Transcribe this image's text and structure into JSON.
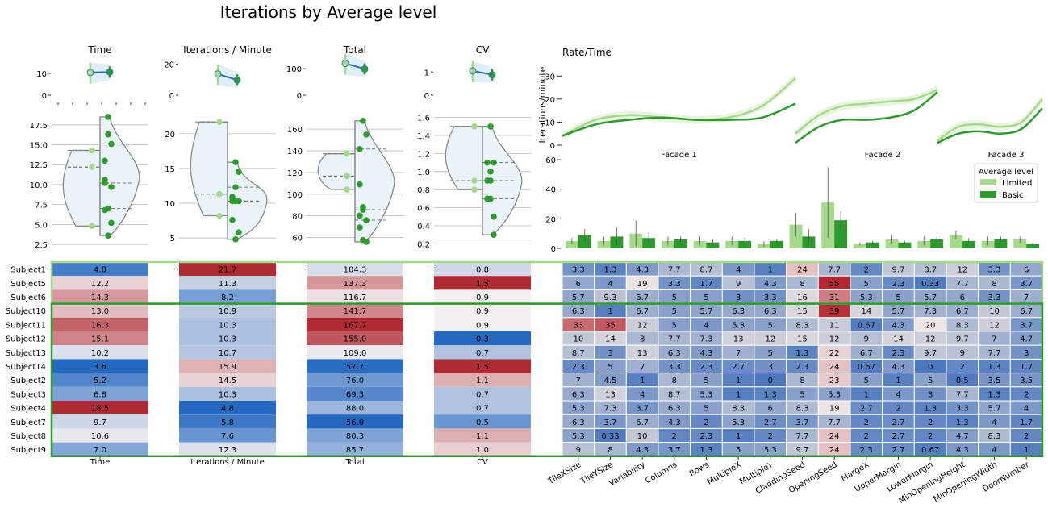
{
  "title": "Iterations by Average level",
  "colors": {
    "limited": "#a6d98d",
    "basic": "#2e9a2e",
    "line": "#1f6fb4",
    "violin_fill": "#eaf3f8",
    "violin_edge": "#8a8a8a",
    "heat_low": "#2468c0",
    "heat_mid": "#f4f0f0",
    "heat_high": "#b02a33"
  },
  "chart_data": [
    {
      "type": "scatter",
      "id": "top_metrics",
      "panels": [
        {
          "title": "Time",
          "yticks": [
            "0",
            "10"
          ],
          "limited": 10.4,
          "basic": 10.6,
          "ylim": [
            0,
            17
          ]
        },
        {
          "title": "Iterations / Minute",
          "yticks": [
            "0",
            "20"
          ],
          "limited": 13.7,
          "basic": 9.8,
          "ylim": [
            0,
            24
          ]
        },
        {
          "title": "Total",
          "yticks": [
            "0",
            "100"
          ],
          "limited": 120,
          "basic": 99,
          "ylim": [
            0,
            140
          ]
        },
        {
          "title": "CV",
          "yticks": [
            "0",
            "1"
          ],
          "limited": 1.05,
          "basic": 0.88,
          "ylim": [
            0,
            1.6
          ]
        }
      ]
    },
    {
      "type": "scatter",
      "id": "violins",
      "panels": [
        {
          "ylim": [
            2,
            19
          ],
          "yticks": [
            "2.5",
            "5.0",
            "7.5",
            "10.0",
            "12.5",
            "15.0",
            "17.5"
          ],
          "tickvals": [
            2.5,
            5,
            7.5,
            10,
            12.5,
            15,
            17.5
          ],
          "limited": [
            4.8,
            12.2,
            14.3
          ],
          "basic": [
            13.0,
            16.3,
            15.1,
            10.2,
            3.6,
            5.2,
            6.8,
            18.5,
            9.7,
            10.6,
            7.0
          ]
        },
        {
          "ylim": [
            3.5,
            23
          ],
          "yticks": [
            "5",
            "10",
            "15",
            "20"
          ],
          "tickvals": [
            5,
            10,
            15,
            20
          ],
          "limited": [
            21.7,
            11.3,
            8.2
          ],
          "basic": [
            10.9,
            10.3,
            10.3,
            10.7,
            15.9,
            14.5,
            10.3,
            4.8,
            5.8,
            7.6,
            12.3
          ]
        },
        {
          "ylim": [
            50,
            175
          ],
          "yticks": [
            "60",
            "80",
            "100",
            "120",
            "140",
            "160"
          ],
          "tickvals": [
            60,
            80,
            100,
            120,
            140,
            160
          ],
          "limited": [
            104.3,
            137.3,
            116.7
          ],
          "basic": [
            141.7,
            167.7,
            155.0,
            109.0,
            57.7,
            76.0,
            69.3,
            88.0,
            56.0,
            80.3,
            85.7
          ]
        },
        {
          "ylim": [
            0.15,
            1.65
          ],
          "yticks": [
            "0.2",
            "0.4",
            "0.6",
            "0.8",
            "1.0",
            "1.2",
            "1.4",
            "1.6"
          ],
          "tickvals": [
            0.2,
            0.4,
            0.6,
            0.8,
            1.0,
            1.2,
            1.4,
            1.6
          ],
          "limited": [
            0.8,
            1.5,
            0.9
          ],
          "basic": [
            0.9,
            0.9,
            0.3,
            0.7,
            1.5,
            1.1,
            0.7,
            0.7,
            0.5,
            1.1,
            1.0
          ]
        }
      ]
    },
    {
      "type": "line",
      "id": "rate_time",
      "title": "Rate/Time",
      "ylabel": "Iterations/minute",
      "ylim": [
        0,
        35
      ],
      "yticks": [
        "0",
        "10",
        "20",
        "30"
      ],
      "tickvals": [
        0,
        10,
        20,
        30
      ],
      "panels": [
        {
          "label": "Facade 1",
          "limited": [
            4,
            11,
            13,
            12,
            11,
            12,
            17,
            29
          ],
          "basic": [
            4,
            9,
            11,
            12,
            11,
            11,
            12,
            18
          ]
        },
        {
          "label": "Facade 2",
          "limited": [
            5,
            13,
            17,
            18,
            19,
            20,
            24
          ],
          "basic": [
            1,
            8,
            11,
            11,
            12,
            15,
            23
          ]
        },
        {
          "label": "Facade 3",
          "limited": [
            2,
            8,
            9,
            8,
            10,
            20
          ],
          "basic": [
            1,
            5,
            6,
            5,
            7,
            16
          ]
        }
      ]
    },
    {
      "type": "bar",
      "id": "parameters",
      "ylim": [
        0,
        60
      ],
      "yticks": [
        "0",
        "20",
        "40",
        "60"
      ],
      "tickvals": [
        0,
        20,
        40,
        60
      ],
      "legend": {
        "title": "Average level",
        "items": [
          "Limited",
          "Basic"
        ],
        "position": "top-right"
      },
      "categories": [
        "TileXSize",
        "TileYSize",
        "Variability",
        "Columns",
        "Rows",
        "MultipleX",
        "MultipleY",
        "CladdingSeed",
        "OpeningSeed",
        "MargeX",
        "UpperMargin",
        "LowerMargin",
        "MinOpeningHeight",
        "MinOpeningWidth",
        "DoorNumber"
      ],
      "series": [
        {
          "name": "Limited",
          "values": [
            5,
            5,
            10,
            5,
            5,
            5,
            3,
            16,
            31,
            3,
            6,
            5,
            9,
            5,
            6
          ],
          "err": [
            2,
            3,
            9,
            3,
            3,
            3,
            2,
            8,
            24,
            1,
            3,
            3,
            3,
            3,
            2
          ]
        },
        {
          "name": "Basic",
          "values": [
            9,
            8,
            7,
            6,
            4,
            5,
            5,
            8,
            19,
            4,
            4,
            6,
            5,
            6,
            3
          ],
          "err": [
            4,
            6,
            4,
            2,
            2,
            2,
            1,
            5,
            6,
            1,
            1,
            2,
            2,
            2,
            1
          ]
        }
      ]
    },
    {
      "type": "heatmap",
      "id": "subjects",
      "rows": [
        "Subject1",
        "Subject5",
        "Subject6",
        "Subject10",
        "Subject11",
        "Subject12",
        "Subject13",
        "Subject14",
        "Subject2",
        "Subject3",
        "Subject4",
        "Subject7",
        "Subject8",
        "Subject9"
      ],
      "metric_columns": [
        "Time",
        "Iterations / Minute",
        "Total",
        "CV"
      ],
      "metric_values": [
        [
          "4.8",
          "21.7",
          "104.3",
          "0.8"
        ],
        [
          "12.2",
          "11.3",
          "137.3",
          "1.5"
        ],
        [
          "14.3",
          "8.2",
          "116.7",
          "0.9"
        ],
        [
          "13.0",
          "10.9",
          "141.7",
          "0.9"
        ],
        [
          "16.3",
          "10.3",
          "167.7",
          "0.9"
        ],
        [
          "15.1",
          "10.3",
          "155.0",
          "0.3"
        ],
        [
          "10.2",
          "10.7",
          "109.0",
          "0.7"
        ],
        [
          "3.6",
          "15.9",
          "57.7",
          "1.5"
        ],
        [
          "5.2",
          "14.5",
          "76.0",
          "1.1"
        ],
        [
          "6.8",
          "10.3",
          "69.3",
          "0.7"
        ],
        [
          "18.5",
          "4.8",
          "88.0",
          "0.7"
        ],
        [
          "9.7",
          "5.8",
          "56.0",
          "0.5"
        ],
        [
          "10.6",
          "7.6",
          "80.3",
          "1.1"
        ],
        [
          "7.0",
          "12.3",
          "85.7",
          "1.0"
        ]
      ],
      "param_values": [
        [
          "3.3",
          "1.3",
          "4.3",
          "7.7",
          "8.7",
          "4",
          "1",
          "24",
          "7.7",
          "2",
          "9.7",
          "8.7",
          "12",
          "3.3",
          "6"
        ],
        [
          "6",
          "4",
          "19",
          "3.3",
          "1.7",
          "9",
          "4.3",
          "8",
          "55",
          "5",
          "2.3",
          "0.33",
          "7.7",
          "8",
          "3.7"
        ],
        [
          "5.7",
          "9.3",
          "6.7",
          "5",
          "5",
          "3",
          "3.3",
          "16",
          "31",
          "5.3",
          "5",
          "5.7",
          "6",
          "3.3",
          "7"
        ],
        [
          "6.3",
          "1",
          "6.7",
          "5",
          "5.7",
          "6.3",
          "6.3",
          "15",
          "39",
          "14",
          "5.7",
          "7.3",
          "6.7",
          "10",
          "6.7"
        ],
        [
          "33",
          "35",
          "12",
          "5",
          "4",
          "5.3",
          "5",
          "8.3",
          "11",
          "0.67",
          "4.3",
          "20",
          "8.3",
          "12",
          "3.7"
        ],
        [
          "10",
          "14",
          "8",
          "7.7",
          "7.3",
          "13",
          "12",
          "15",
          "12",
          "9",
          "14",
          "12",
          "9.7",
          "7",
          "4.7"
        ],
        [
          "8.7",
          "3",
          "13",
          "6.3",
          "4.3",
          "7",
          "5",
          "1.3",
          "22",
          "6.7",
          "2.3",
          "9.7",
          "9",
          "7.7",
          "3"
        ],
        [
          "2.3",
          "5",
          "7",
          "3.3",
          "2.3",
          "2.7",
          "3",
          "2.3",
          "24",
          "0.67",
          "4.3",
          "0",
          "2",
          "1.3",
          "1.7"
        ],
        [
          "7",
          "4.5",
          "1",
          "8",
          "5",
          "1",
          "0",
          "8",
          "23",
          "5",
          "1",
          "5",
          "0.5",
          "3.5",
          "3.5"
        ],
        [
          "6.3",
          "13",
          "4",
          "8.7",
          "5.3",
          "1",
          "1.3",
          "5",
          "5.3",
          "1",
          "4",
          "3",
          "7.7",
          "1.3",
          "2"
        ],
        [
          "5.3",
          "7.3",
          "3.7",
          "6.3",
          "5",
          "8.3",
          "6",
          "8.3",
          "19",
          "2.7",
          "2",
          "1.3",
          "3.3",
          "5.7",
          "4"
        ],
        [
          "6.3",
          "3.7",
          "6.7",
          "4.3",
          "2",
          "5.3",
          "2.7",
          "3.7",
          "7.7",
          "2",
          "2.7",
          "2",
          "1.3",
          "4",
          "1.7"
        ],
        [
          "5.3",
          "0.33",
          "10",
          "2",
          "2.3",
          "1",
          "2",
          "7.7",
          "24",
          "2",
          "2.7",
          "2",
          "4.7",
          "8.3",
          "2"
        ],
        [
          "9",
          "8",
          "4.3",
          "3.7",
          "1.3",
          "5",
          "5.3",
          "9.7",
          "24",
          "2.3",
          "2.7",
          "0.67",
          "4.3",
          "4",
          "1"
        ]
      ],
      "groups": [
        {
          "name": "Limited",
          "rows": [
            0,
            2
          ]
        },
        {
          "name": "Basic",
          "rows": [
            3,
            13
          ]
        }
      ]
    }
  ]
}
